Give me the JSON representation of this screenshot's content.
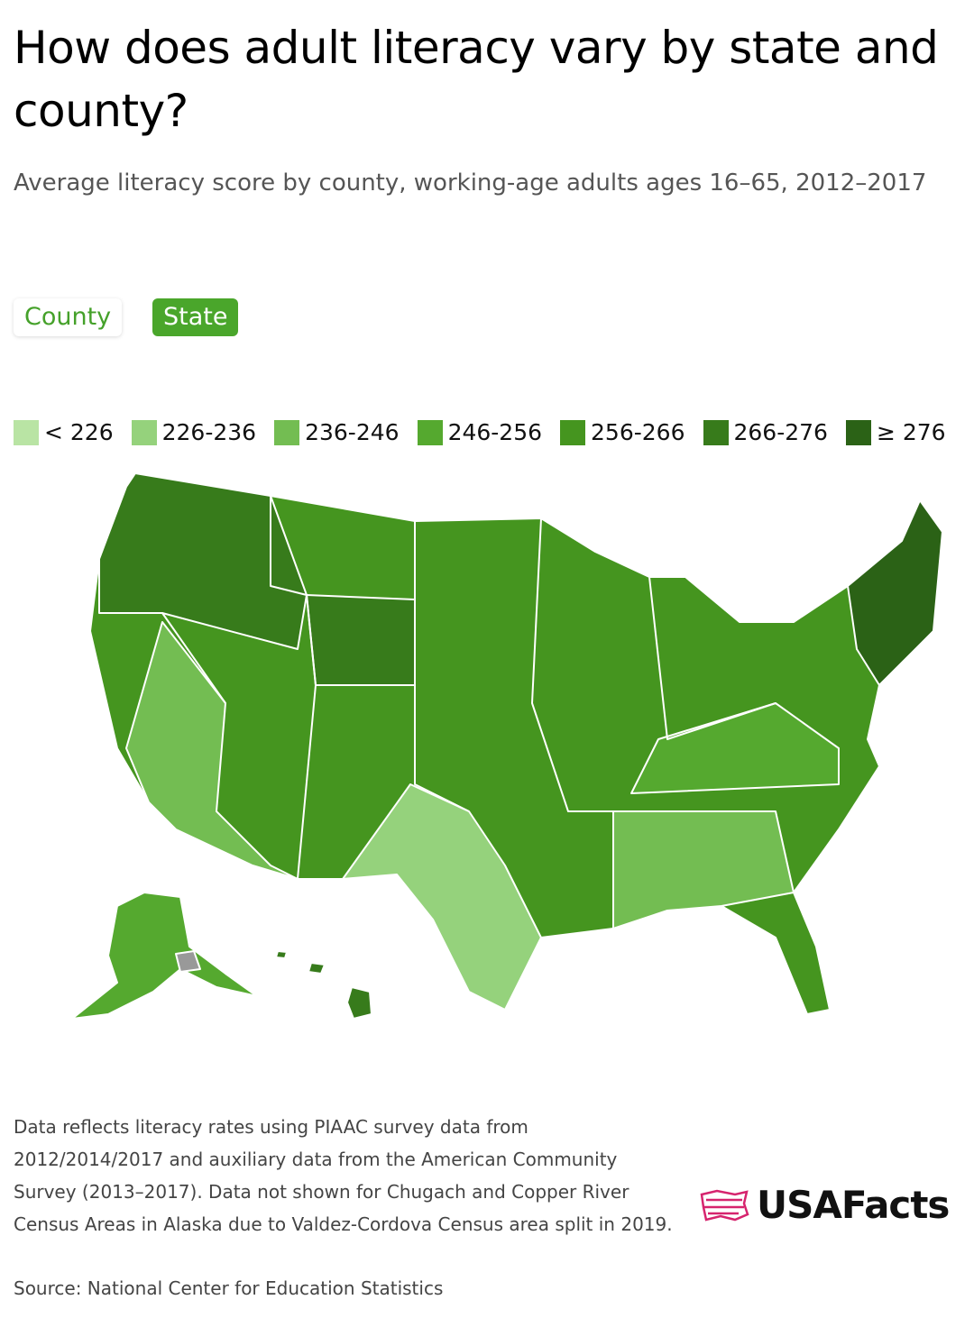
{
  "header": {
    "title": "How does adult literacy vary by state and county?",
    "subtitle": "Average literacy score by county, working-age adults ages 16–65, 2012–2017"
  },
  "toggle": [
    "County",
    "State"
  ],
  "legend": [
    {
      "label": "< 226",
      "color": "#b9e4a4"
    },
    {
      "label": "226-236",
      "color": "#95d27c"
    },
    {
      "label": "236-246",
      "color": "#73bd52"
    },
    {
      "label": "246-256",
      "color": "#55a92f"
    },
    {
      "label": "256-266",
      "color": "#45951f"
    },
    {
      "label": "266-276",
      "color": "#377b1b"
    },
    {
      "label": "≥ 276",
      "color": "#2b6216"
    }
  ],
  "footer": {
    "note": "Data reflects literacy rates using PIAAC survey data from 2012/2014/2017 and auxiliary data from the American Community Survey (2013–2017). Data not shown for Chugach and Copper River Census Areas in Alaska due to Valdez-Cordova Census area split in 2019.",
    "source": "Source: National Center for Education Statistics",
    "logo": "USAFacts"
  }
}
